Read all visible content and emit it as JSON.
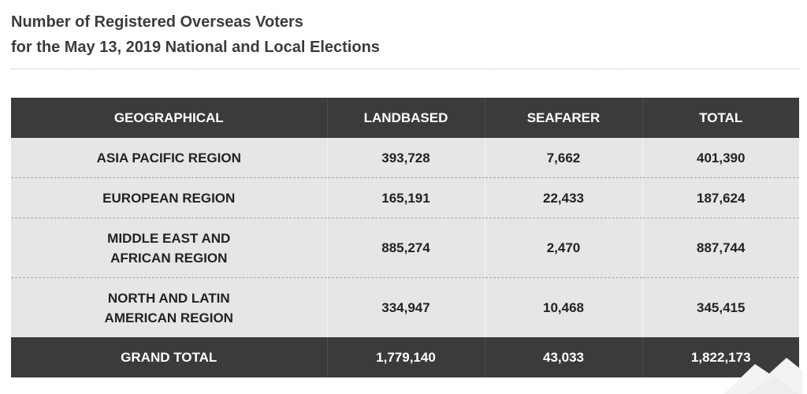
{
  "title": {
    "line1": "Number of Registered Overseas Voters",
    "line2": "for the May 13, 2019 National and Local Elections"
  },
  "table": {
    "headers": [
      "GEOGRAPHICAL",
      "LANDBASED",
      "SEAFARER",
      "TOTAL"
    ],
    "rows": [
      {
        "region_line1": "ASIA PACIFIC REGION",
        "region_line2": "",
        "landbased": "393,728",
        "seafarer": "7,662",
        "total": "401,390"
      },
      {
        "region_line1": "EUROPEAN REGION",
        "region_line2": "",
        "landbased": "165,191",
        "seafarer": "22,433",
        "total": "187,624"
      },
      {
        "region_line1": "MIDDLE EAST AND",
        "region_line2": "AFRICAN REGION",
        "landbased": "885,274",
        "seafarer": "2,470",
        "total": "887,744"
      },
      {
        "region_line1": "NORTH AND LATIN",
        "region_line2": "AMERICAN REGION",
        "landbased": "334,947",
        "seafarer": "10,468",
        "total": "345,415"
      }
    ],
    "grand_total": {
      "label": "GRAND TOTAL",
      "landbased": "1,779,140",
      "seafarer": "43,033",
      "total": "1,822,173"
    }
  },
  "colors": {
    "header_bg": "#3b3b3b",
    "row_bg": "#e6e6e6",
    "title_text": "#3c3c3c"
  }
}
